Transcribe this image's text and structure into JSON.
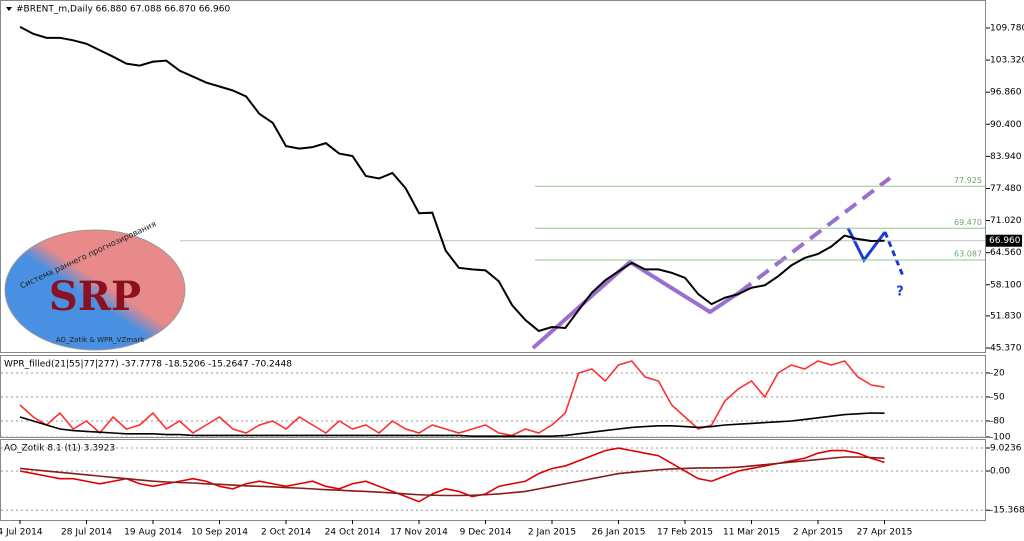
{
  "chart_data": [
    {
      "type": "line",
      "title": "#BRENT_m,Daily  66.880 67.088 66.870 66.960",
      "color": "#000000",
      "categories": [
        "4 Jul 2014",
        null,
        null,
        null,
        null,
        "28 Jul 2014",
        null,
        null,
        null,
        null,
        "19 Aug 2014",
        null,
        null,
        null,
        null,
        "10 Sep 2014",
        null,
        null,
        null,
        null,
        "2 Oct 2014",
        null,
        null,
        null,
        null,
        "24 Oct 2014",
        null,
        null,
        null,
        null,
        "17 Nov 2014",
        null,
        null,
        null,
        null,
        "9 Dec 2014",
        null,
        null,
        null,
        null,
        "2 Jan 2015",
        null,
        null,
        null,
        null,
        "26 Jan 2015",
        null,
        null,
        null,
        null,
        "17 Feb 2015",
        null,
        null,
        null,
        null,
        "11 Mar 2015",
        null,
        null,
        null,
        null,
        "2 Apr 2015",
        null,
        null,
        null,
        null,
        "27 Apr 2015"
      ],
      "values": [
        110.0,
        108.6,
        107.8,
        107.8,
        107.3,
        106.6,
        105.3,
        104.0,
        102.6,
        102.2,
        103.0,
        103.2,
        101.2,
        100.0,
        98.8,
        98.0,
        97.2,
        96.0,
        92.5,
        90.7,
        86.0,
        85.5,
        85.8,
        86.6,
        84.5,
        84.0,
        80.0,
        79.5,
        80.6,
        77.5,
        72.5,
        72.6,
        65.0,
        61.5,
        61.2,
        61.0,
        58.8,
        54.0,
        51.0,
        48.8,
        49.6,
        49.4,
        53.0,
        56.5,
        59.0,
        60.8,
        62.5,
        61.2,
        61.2,
        60.5,
        59.5,
        56.2,
        54.2,
        55.5,
        56.2,
        57.5,
        58.0,
        59.8,
        62.0,
        63.5,
        64.3,
        65.8,
        68.0,
        67.3,
        66.9,
        66.96
      ],
      "ylim": [
        44.565,
        115.01
      ],
      "yticks": [
        {
          "value": 109.78,
          "label": "109.780"
        },
        {
          "value": 103.32,
          "label": "103.320"
        },
        {
          "value": 96.86,
          "label": "96.860"
        },
        {
          "value": 90.4,
          "label": "90.400"
        },
        {
          "value": 83.94,
          "label": "83.940"
        },
        {
          "value": 77.48,
          "label": "77.480"
        },
        {
          "value": 71.02,
          "label": "71.020"
        },
        {
          "value": 64.56,
          "label": "64.560"
        },
        {
          "value": 58.1,
          "label": "58.100"
        },
        {
          "value": 51.83,
          "label": "51.830"
        },
        {
          "value": 45.37,
          "label": "45.370"
        }
      ],
      "levels": [
        {
          "value": 77.925,
          "label": "77.925"
        },
        {
          "value": 69.47,
          "label": "69.470"
        },
        {
          "value": 63.087,
          "label": "63.087"
        }
      ],
      "current_price": {
        "value": 66.96,
        "label": "66.960"
      },
      "annotation": "?",
      "logo": {
        "title": "SRP",
        "arc": "Система раннего прогнозирования",
        "caption": "AO_Zotik & WPR_VZmark"
      }
    },
    {
      "type": "line",
      "title": "WPR_filled(21|55|77|277) -37.7778 -18.5206 -15.2647 -70.2448",
      "ylim": [
        -100,
        0
      ],
      "yticks": [
        -20,
        -50,
        -80,
        -100
      ],
      "series": [
        {
          "color": "#ff3030",
          "values": [
            -60,
            -75,
            -85,
            -70,
            -90,
            -80,
            -95,
            -75,
            -90,
            -85,
            -70,
            -90,
            -80,
            -95,
            -85,
            -75,
            -90,
            -95,
            -85,
            -80,
            -90,
            -75,
            -85,
            -95,
            -80,
            -90,
            -85,
            -95,
            -80,
            -90,
            -95,
            -85,
            -90,
            -95,
            -90,
            -85,
            -95,
            -98,
            -90,
            -95,
            -85,
            -70,
            -20,
            -15,
            -30,
            -10,
            -5,
            -25,
            -30,
            -60,
            -75,
            -90,
            -85,
            -55,
            -40,
            -30,
            -50,
            -20,
            -10,
            -15,
            -5,
            -10,
            -5,
            -25,
            -35,
            -37.7778
          ]
        },
        {
          "color": "#000000",
          "values": [
            -75,
            -80,
            -85,
            -90,
            -92,
            -93,
            -94,
            -95,
            -96,
            -96,
            -96,
            -97,
            -97,
            -98,
            -98,
            -98,
            -98,
            -98,
            -98,
            -98,
            -98,
            -98,
            -98,
            -98,
            -98,
            -98,
            -98,
            -98,
            -98,
            -98,
            -98,
            -98,
            -98,
            -98,
            -99,
            -99,
            -99,
            -99,
            -99,
            -99,
            -99,
            -98,
            -96,
            -94,
            -92,
            -90,
            -88,
            -87,
            -86,
            -86,
            -87,
            -88,
            -87,
            -85,
            -84,
            -83,
            -82,
            -81,
            -80,
            -78,
            -76,
            -74,
            -72,
            -71,
            -70,
            -70.2448
          ]
        }
      ]
    },
    {
      "type": "line",
      "title": "AO_Zotik 8.1 (t1) 3.3923",
      "ylim": [
        -19.2,
        12.16
      ],
      "yticks": [
        9.0236,
        {
          "value": 0,
          "label": "0.00"
        },
        -15.3683
      ],
      "series": [
        {
          "color": "#e00000",
          "values": [
            0,
            -1,
            -2,
            -3,
            -3,
            -4,
            -5,
            -4,
            -3,
            -5,
            -6,
            -5,
            -4,
            -3,
            -4,
            -6,
            -7,
            -5,
            -4,
            -5,
            -6,
            -5,
            -4,
            -6,
            -7,
            -5,
            -4,
            -6,
            -8,
            -10,
            -12,
            -9,
            -7,
            -8,
            -10,
            -9,
            -6,
            -5,
            -4,
            -1,
            1,
            2,
            4,
            6,
            8,
            9,
            8,
            7,
            6,
            3,
            0,
            -3,
            -4,
            -2,
            0,
            1,
            2,
            3,
            4,
            5,
            7,
            8,
            8,
            7,
            5,
            3.3923
          ]
        },
        {
          "color": "#8b1a1a",
          "values": [
            1,
            0.5,
            0,
            -0.5,
            -1,
            -1.5,
            -2,
            -2.5,
            -3,
            -3.5,
            -4,
            -4.3,
            -4.5,
            -4.7,
            -5,
            -5.2,
            -5.5,
            -5.8,
            -6,
            -6.2,
            -6.5,
            -6.7,
            -7,
            -7.3,
            -7.5,
            -7.8,
            -8,
            -8.3,
            -8.6,
            -9,
            -9.3,
            -9.5,
            -9.6,
            -9.6,
            -9.5,
            -9.3,
            -9,
            -8.5,
            -8,
            -7,
            -6,
            -5,
            -4,
            -3,
            -2,
            -1,
            -0.5,
            0,
            0.5,
            0.8,
            1,
            1.2,
            1.2,
            1.3,
            1.5,
            2,
            2.5,
            3,
            3.5,
            4,
            4.5,
            5,
            5.5,
            5.5,
            5.3,
            5
          ]
        }
      ]
    }
  ]
}
